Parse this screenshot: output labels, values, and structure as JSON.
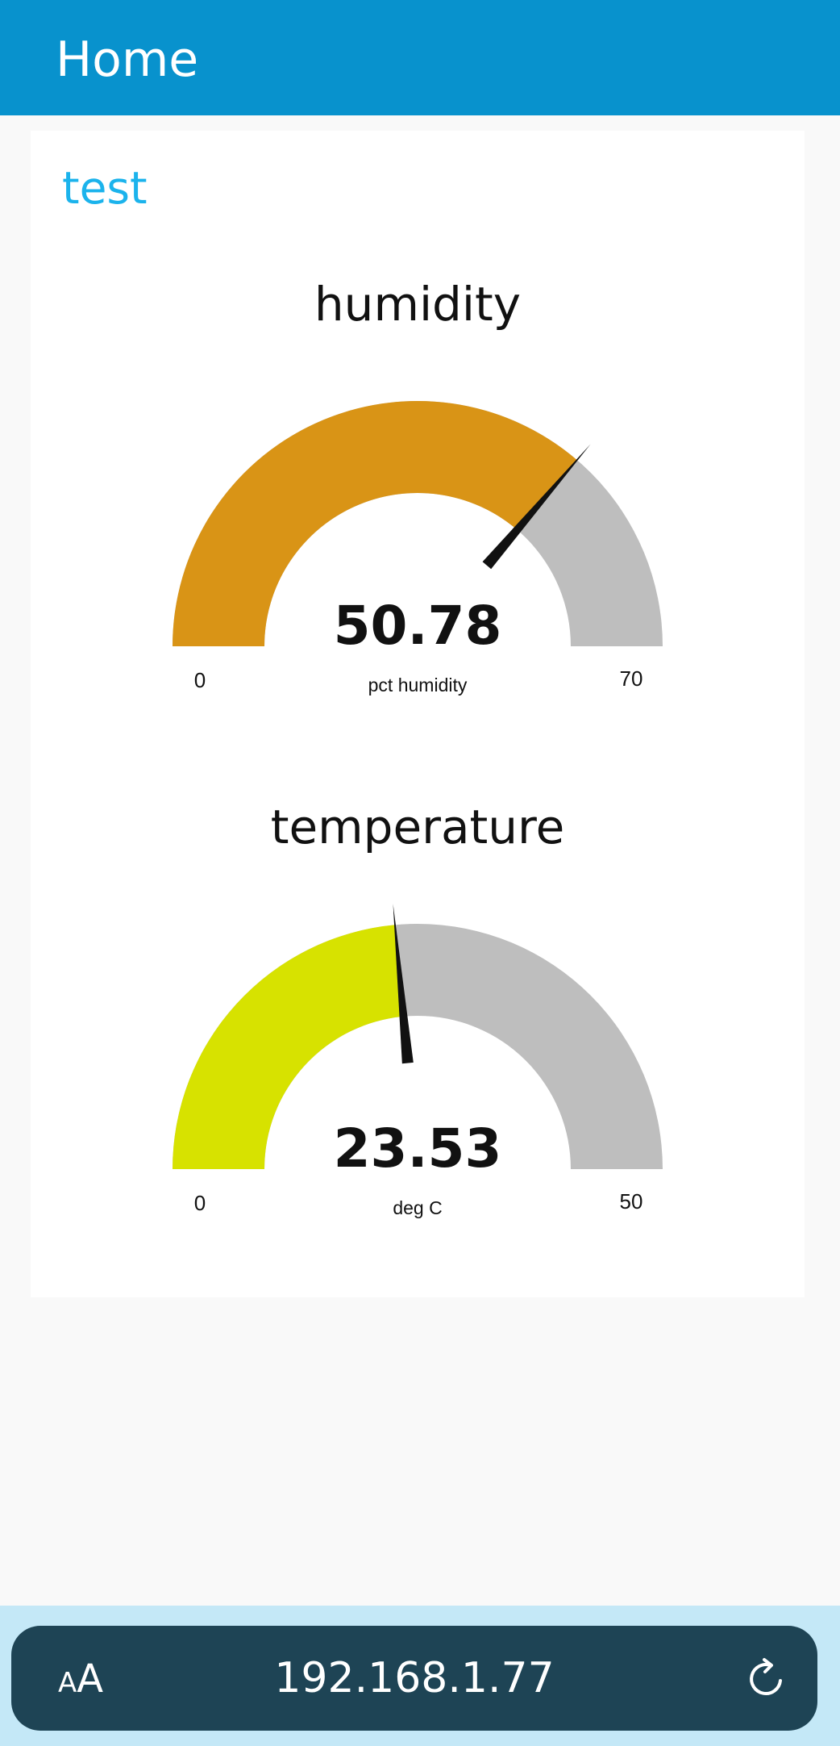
{
  "header": {
    "title": "Home"
  },
  "group": {
    "title": "test"
  },
  "gauges": [
    {
      "title": "humidity",
      "value": 50.78,
      "value_text": "50.78",
      "units": "pct humidity",
      "min": 0,
      "max": 70,
      "min_text": "0",
      "max_text": "70",
      "fill_color": "#d99416",
      "track_color": "#bebebe",
      "needle_color": "#111111"
    },
    {
      "title": "temperature",
      "value": 23.53,
      "value_text": "23.53",
      "units": "deg C",
      "min": 0,
      "max": 50,
      "min_text": "0",
      "max_text": "50",
      "fill_color": "#d7e200",
      "track_color": "#bebebe",
      "needle_color": "#111111"
    }
  ],
  "browser": {
    "text_size_icon": "text-size-icon",
    "url": "192.168.1.77",
    "reload_icon": "reload-icon"
  },
  "colors": {
    "header_bg": "#0892cd",
    "group_title": "#1bb3ec",
    "address_bar_bg": "#1e4455",
    "bottom_bar_bg": "#c4e8f7"
  }
}
